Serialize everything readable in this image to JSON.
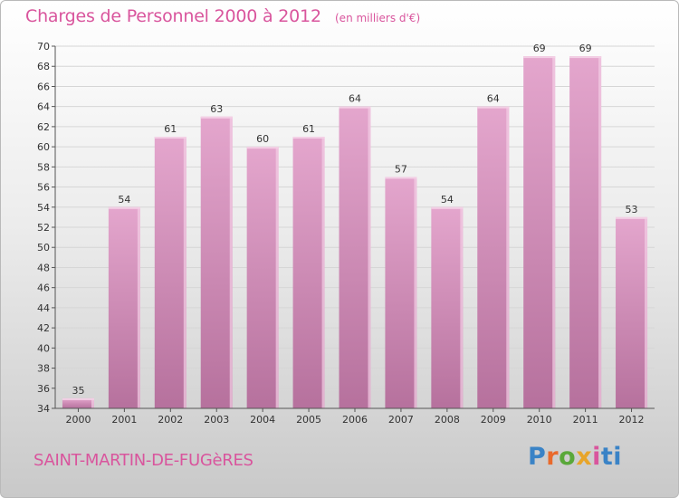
{
  "header": {
    "title": "Charges de Personnel 2000 à 2012",
    "subtitle": "(en milliers d'€)"
  },
  "footer": {
    "place": "SAINT-MARTIN-DE-FUGèRES",
    "logo": "Proxiti"
  },
  "colors": {
    "bar_top": "#e4a6cd",
    "bar_bottom": "#b6719d",
    "bar_edge": "#f3cfe5",
    "accent": "#d9559d",
    "axis": "#555555",
    "grid": "#d6d6d6"
  },
  "chart_data": {
    "type": "bar",
    "title": "Charges de Personnel 2000 à 2012",
    "subtitle": "(en milliers d'€)",
    "categories": [
      "2000",
      "2001",
      "2002",
      "2003",
      "2004",
      "2005",
      "2006",
      "2007",
      "2008",
      "2009",
      "2010",
      "2011",
      "2012"
    ],
    "values": [
      35,
      54,
      61,
      63,
      60,
      61,
      64,
      57,
      54,
      64,
      69,
      69,
      53
    ],
    "data_labels": [
      "35",
      "54",
      "61",
      "63",
      "60",
      "61",
      "64",
      "57",
      "54",
      "64",
      "69",
      "69",
      "53"
    ],
    "ylim": [
      34,
      70
    ],
    "yticks": [
      "34",
      "36",
      "38",
      "40",
      "42",
      "44",
      "46",
      "48",
      "50",
      "52",
      "54",
      "56",
      "58",
      "60",
      "62",
      "64",
      "66",
      "68",
      "70"
    ],
    "grid": true,
    "legend": "none"
  }
}
